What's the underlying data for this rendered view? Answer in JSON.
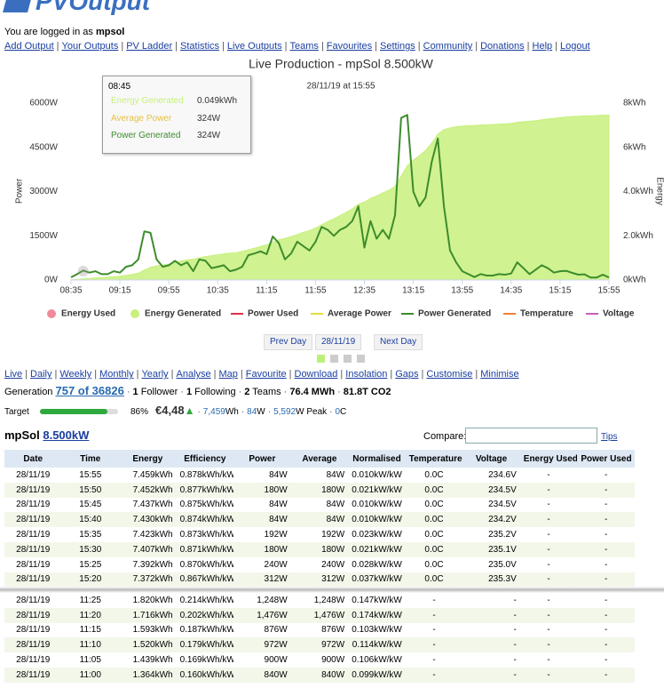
{
  "header": {
    "logo": "PVOutput",
    "login_text": "You are logged in as",
    "login_user": "mpsol",
    "nav": [
      "Add Output",
      "Your Outputs",
      "PV Ladder",
      "Statistics",
      "Live Outputs",
      "Teams",
      "Favourites",
      "Settings",
      "Community",
      "Donations",
      "Help",
      "Logout"
    ],
    "separator": "|"
  },
  "chart_data": {
    "type": "area-line",
    "title": "Live Production - mpSol 8.500kW",
    "subtitle": "28/11/19 at 15:55",
    "y_label": "Power",
    "y2_label": "Energy",
    "categories": [
      "08:35",
      null,
      null,
      null,
      null,
      null,
      null,
      null,
      "09:15",
      null,
      null,
      null,
      null,
      null,
      null,
      null,
      "09:55",
      null,
      null,
      null,
      null,
      null,
      null,
      null,
      "10:35",
      null,
      null,
      null,
      null,
      null,
      null,
      null,
      "11:15",
      null,
      null,
      null,
      null,
      null,
      null,
      null,
      "11:55",
      null,
      null,
      null,
      null,
      null,
      null,
      null,
      "12:35",
      null,
      null,
      null,
      null,
      null,
      null,
      null,
      "13:15",
      null,
      null,
      null,
      null,
      null,
      null,
      null,
      "13:55",
      null,
      null,
      null,
      null,
      null,
      null,
      null,
      "14:35",
      null,
      null,
      null,
      null,
      null,
      null,
      null,
      "15:15",
      null,
      null,
      null,
      null,
      null,
      null,
      null,
      "15:55"
    ],
    "ylim": [
      0,
      6000
    ],
    "yticks": [
      {
        "value": 0,
        "label": "0W"
      },
      {
        "value": 1500,
        "label": "1500W"
      },
      {
        "value": 3000,
        "label": "3000W"
      },
      {
        "value": 4500,
        "label": "4500W"
      },
      {
        "value": 6000,
        "label": "6000W"
      }
    ],
    "y2lim": [
      0,
      8
    ],
    "y2ticks": [
      {
        "value": 0,
        "label": "0kWh"
      },
      {
        "value": 2,
        "label": "2.0kWh"
      },
      {
        "value": 4,
        "label": "4.0kWh"
      },
      {
        "value": 6,
        "label": "6kWh"
      },
      {
        "value": 8,
        "label": "8kWh"
      }
    ],
    "grid": false,
    "series": [
      {
        "name": "Energy Used",
        "color": "#f08a9a",
        "marker": "circle"
      },
      {
        "name": "Energy Generated",
        "color": "#c8f07c",
        "marker": "circle",
        "axis": "y2",
        "values": [
          0.008,
          0.025,
          0.049,
          0.07,
          0.095,
          0.11,
          0.13,
          0.15,
          0.17,
          0.21,
          0.25,
          0.31,
          0.45,
          0.58,
          0.64,
          0.68,
          0.72,
          0.8,
          0.86,
          0.91,
          0.94,
          1.0,
          1.06,
          1.1,
          1.14,
          1.18,
          1.21,
          1.24,
          1.29,
          1.364,
          1.439,
          1.52,
          1.593,
          1.716,
          1.82,
          1.88,
          1.96,
          2.06,
          2.16,
          2.24,
          2.35,
          2.5,
          2.64,
          2.77,
          2.91,
          3.06,
          3.22,
          3.43,
          3.52,
          3.69,
          3.8,
          3.94,
          4.06,
          4.24,
          4.7,
          5.17,
          5.42,
          5.63,
          5.86,
          6.19,
          6.59,
          6.8,
          6.88,
          6.93,
          6.96,
          6.98,
          6.99,
          7.01,
          7.02,
          7.03,
          7.05,
          7.06,
          7.08,
          7.13,
          7.16,
          7.18,
          7.21,
          7.25,
          7.29,
          7.31,
          7.34,
          7.372,
          7.392,
          7.407,
          7.423,
          7.43,
          7.437,
          7.452,
          7.459
        ]
      },
      {
        "name": "Power Used",
        "color": "#e0304a",
        "marker": "line"
      },
      {
        "name": "Average Power",
        "color": "#e6dc3c",
        "marker": "line"
      },
      {
        "name": "Power Generated",
        "color": "#3d8c2c",
        "marker": "line",
        "axis": "y",
        "values": [
          90,
          200,
          324,
          250,
          300,
          200,
          200,
          300,
          250,
          450,
          500,
          700,
          1650,
          1600,
          700,
          450,
          500,
          650,
          500,
          600,
          300,
          700,
          650,
          400,
          450,
          500,
          300,
          350,
          450,
          840,
          900,
          972,
          876,
          1476,
          1248,
          700,
          900,
          1300,
          1150,
          1000,
          1300,
          1800,
          1700,
          1500,
          1700,
          1800,
          2000,
          2500,
          1100,
          2000,
          1400,
          1700,
          1400,
          2200,
          5500,
          5600,
          3000,
          2500,
          2800,
          4000,
          4800,
          2500,
          1000,
          600,
          300,
          200,
          100,
          200,
          150,
          150,
          200,
          180,
          220,
          600,
          400,
          200,
          350,
          500,
          400,
          250,
          300,
          312,
          240,
          180,
          192,
          84,
          84,
          180,
          84
        ]
      },
      {
        "name": "Temperature",
        "color": "#f0803c",
        "marker": "line"
      },
      {
        "name": "Voltage",
        "color": "#c060c0",
        "marker": "line"
      }
    ]
  },
  "tooltip": {
    "time": "08:45",
    "rows": [
      [
        "Energy Generated",
        "0.049kWh"
      ],
      [
        "Average Power",
        "324W"
      ],
      [
        "Power Generated",
        "324W"
      ]
    ]
  },
  "date_nav": {
    "prev": "Prev Day",
    "date": "28/11/19",
    "next": "Next Day"
  },
  "tabs": [
    "Live",
    "Daily",
    "Weekly",
    "Monthly",
    "Yearly",
    "Analyse",
    "Map",
    "Favourite",
    "Download",
    "Insolation",
    "Gaps",
    "Customise",
    "Minimise"
  ],
  "stats": {
    "label": "Generation",
    "rank": "757 of 36826",
    "separator": "·",
    "items": [
      {
        "bold": "1",
        "text": "Follower"
      },
      {
        "bold": "1",
        "text": "Following"
      },
      {
        "bold": "2",
        "text": "Teams"
      },
      {
        "bold": "76.4 MWh"
      },
      {
        "bold": "81.8T CO2"
      }
    ]
  },
  "target": {
    "label": "Target",
    "percent": 86,
    "percent_label": "86%",
    "amount": "€4,48",
    "trend": "▲",
    "details": [
      {
        "value": "7,459",
        "unit": "Wh"
      },
      {
        "value": "84",
        "unit": "W"
      },
      {
        "value": "5,592",
        "unit": "W Peak"
      },
      {
        "value": "0",
        "unit": "C"
      }
    ]
  },
  "system": {
    "name": "mpSol",
    "size": "8.500kW",
    "compare": "Compare:",
    "tips": "Tips"
  },
  "table": {
    "headers": [
      "Date",
      "Time",
      "Energy",
      "Efficiency",
      "Power",
      "Average",
      "Normalised",
      "Temperature",
      "Voltage",
      "Energy Used",
      "Power Used"
    ],
    "rows_top": [
      [
        "28/11/19",
        "15:55",
        "7.459kWh",
        "0.878kWh/kW",
        "84W",
        "84W",
        "0.010kW/kW",
        "0.0C",
        "234.6V",
        "-",
        "-"
      ],
      [
        "28/11/19",
        "15:50",
        "7.452kWh",
        "0.877kWh/kW",
        "180W",
        "180W",
        "0.021kW/kW",
        "0.0C",
        "234.5V",
        "-",
        "-"
      ],
      [
        "28/11/19",
        "15:45",
        "7.437kWh",
        "0.875kWh/kW",
        "84W",
        "84W",
        "0.010kW/kW",
        "0.0C",
        "234.5V",
        "-",
        "-"
      ],
      [
        "28/11/19",
        "15:40",
        "7.430kWh",
        "0.874kWh/kW",
        "84W",
        "84W",
        "0.010kW/kW",
        "0.0C",
        "234.2V",
        "-",
        "-"
      ],
      [
        "28/11/19",
        "15:35",
        "7.423kWh",
        "0.873kWh/kW",
        "192W",
        "192W",
        "0.023kW/kW",
        "0.0C",
        "235.2V",
        "-",
        "-"
      ],
      [
        "28/11/19",
        "15:30",
        "7.407kWh",
        "0.871kWh/kW",
        "180W",
        "180W",
        "0.021kW/kW",
        "0.0C",
        "235.1V",
        "-",
        "-"
      ],
      [
        "28/11/19",
        "15:25",
        "7.392kWh",
        "0.870kWh/kW",
        "240W",
        "240W",
        "0.028kW/kW",
        "0.0C",
        "235.0V",
        "-",
        "-"
      ],
      [
        "28/11/19",
        "15:20",
        "7.372kWh",
        "0.867kWh/kW",
        "312W",
        "312W",
        "0.037kW/kW",
        "0.0C",
        "235.3V",
        "-",
        "-"
      ]
    ],
    "rows_bottom": [
      [
        "28/11/19",
        "11:25",
        "1.820kWh",
        "0.214kWh/kW",
        "1,248W",
        "1,248W",
        "0.147kW/kW",
        "-",
        "-",
        "-",
        "-"
      ],
      [
        "28/11/19",
        "11:20",
        "1.716kWh",
        "0.202kWh/kW",
        "1,476W",
        "1,476W",
        "0.174kW/kW",
        "-",
        "-",
        "-",
        "-"
      ],
      [
        "28/11/19",
        "11:15",
        "1.593kWh",
        "0.187kWh/kW",
        "876W",
        "876W",
        "0.103kW/kW",
        "-",
        "-",
        "-",
        "-"
      ],
      [
        "28/11/19",
        "11:10",
        "1.520kWh",
        "0.179kWh/kW",
        "972W",
        "972W",
        "0.114kW/kW",
        "-",
        "-",
        "-",
        "-"
      ],
      [
        "28/11/19",
        "11:05",
        "1.439kWh",
        "0.169kWh/kW",
        "900W",
        "900W",
        "0.106kW/kW",
        "-",
        "-",
        "-",
        "-"
      ],
      [
        "28/11/19",
        "11:00",
        "1.364kWh",
        "0.160kWh/kW",
        "840W",
        "840W",
        "0.099kW/kW",
        "-",
        "-",
        "-",
        "-"
      ]
    ]
  }
}
